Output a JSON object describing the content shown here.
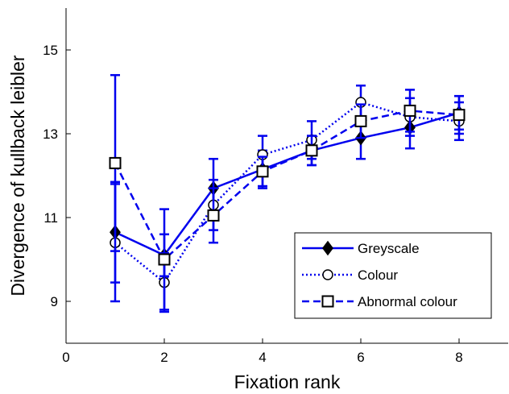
{
  "chart_data": {
    "type": "line",
    "title": "",
    "xlabel": "Fixation rank",
    "ylabel": "Divergence of kullback leibler",
    "xlim": [
      0,
      9
    ],
    "ylim": [
      8,
      16
    ],
    "xticks": [
      0,
      2,
      4,
      6,
      8
    ],
    "yticks": [
      9,
      11,
      13,
      15
    ],
    "grid": false,
    "legend_position": "bottom-right",
    "x": [
      1,
      2,
      3,
      4,
      5,
      6,
      7,
      8
    ],
    "series": [
      {
        "name": "Greyscale",
        "line_style": "solid",
        "marker": "diamond",
        "marker_fill": "black",
        "color": "#0000ee",
        "values": [
          10.65,
          10.1,
          11.7,
          12.15,
          12.6,
          12.9,
          13.15,
          13.5
        ],
        "error": [
          1.2,
          0.5,
          0.7,
          0.45,
          0.35,
          0.5,
          0.5,
          0.4
        ]
      },
      {
        "name": "Colour",
        "line_style": "dotted",
        "marker": "circle",
        "marker_fill": "white",
        "color": "#0000ee",
        "values": [
          10.4,
          9.45,
          11.3,
          12.5,
          12.85,
          13.75,
          13.4,
          13.3
        ],
        "error": [
          1.4,
          0.7,
          0.6,
          0.45,
          0.45,
          0.4,
          0.45,
          0.45
        ]
      },
      {
        "name": "Abnormal colour",
        "line_style": "dashed",
        "marker": "square",
        "marker_fill": "white",
        "color": "#0000ee",
        "values": [
          12.3,
          10.0,
          11.05,
          12.1,
          12.6,
          13.3,
          13.55,
          13.45
        ],
        "error": [
          2.1,
          1.2,
          0.65,
          0.35,
          0.35,
          0.4,
          0.5,
          0.45
        ]
      }
    ]
  }
}
